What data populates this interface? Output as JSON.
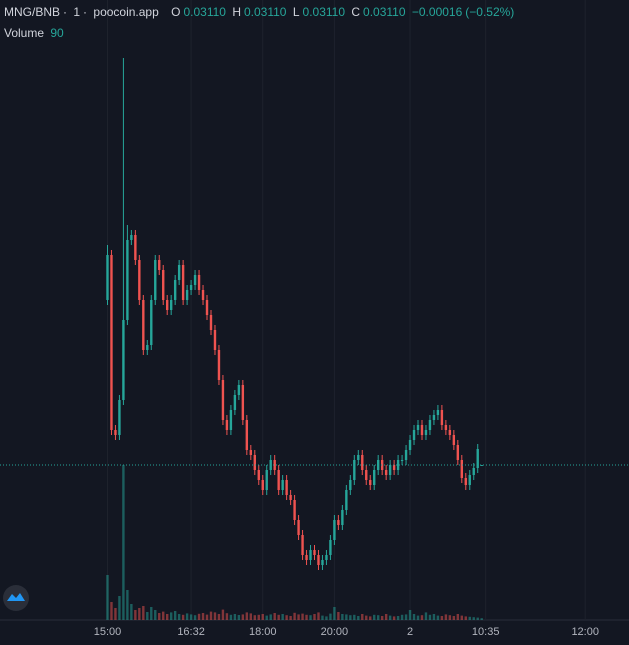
{
  "chart_data": {
    "type": "candlestick",
    "legend": {
      "pair": "MNG/BNB",
      "interval": "1",
      "source": "poocoin.app",
      "open_label": "O",
      "open": {
        "value": 0.0311,
        "label": "0.03110"
      },
      "high_label": "H",
      "high": {
        "value": 0.0311,
        "label": "0.03110"
      },
      "low_label": "L",
      "low": {
        "value": 0.0311,
        "label": "0.03110"
      },
      "close_label": "C",
      "close": {
        "value": 0.0311,
        "label": "0.03110"
      },
      "change": {
        "value": -0.00016,
        "label": "−0.00016"
      },
      "change_pct": {
        "value": -0.52,
        "label": "(−0.52%)"
      },
      "volume_label": "Volume",
      "volume": 90
    },
    "up_color": "#26a69a",
    "down_color": "#ef5350",
    "open": [
      0.03275,
      0.0332,
      0.03145,
      0.0314,
      0.03175,
      0.03255,
      0.03335,
      0.0334,
      0.03315,
      0.03275,
      0.03225,
      0.0323,
      0.03275,
      0.03315,
      0.03305,
      0.03275,
      0.03265,
      0.03275,
      0.03295,
      0.0331,
      0.03275,
      0.03285,
      0.0329,
      0.033,
      0.03285,
      0.03275,
      0.0326,
      0.03245,
      0.03225,
      0.03195,
      0.03155,
      0.03145,
      0.03165,
      0.0318,
      0.0319,
      0.03155,
      0.03125,
      0.0312,
      0.03105,
      0.03095,
      0.03085,
      0.03105,
      0.03115,
      0.03105,
      0.03085,
      0.03095,
      0.0308,
      0.03075,
      0.03055,
      0.0304,
      0.0302,
      0.03015,
      0.03025,
      0.0302,
      0.0301,
      0.03015,
      0.0302,
      0.03035,
      0.03055,
      0.0305,
      0.03065,
      0.03085,
      0.03095,
      0.03115,
      0.0312,
      0.03105,
      0.03095,
      0.0309,
      0.03105,
      0.03115,
      0.03105,
      0.031,
      0.0311,
      0.03105,
      0.03115,
      0.03115,
      0.03125,
      0.03135,
      0.03145,
      0.0315,
      0.0314,
      0.03145,
      0.03155,
      0.0316,
      0.03165,
      0.0315,
      0.03145,
      0.0314,
      0.0313,
      0.03115,
      0.03097,
      0.0309,
      0.031,
      0.03107,
      0.0311
    ],
    "high": [
      0.0333,
      0.03325,
      0.0315,
      0.0318,
      0.03517,
      0.0335,
      0.03345,
      0.03345,
      0.0332,
      0.0328,
      0.03235,
      0.0328,
      0.0332,
      0.0332,
      0.0331,
      0.0328,
      0.0328,
      0.033,
      0.03315,
      0.03315,
      0.0329,
      0.03295,
      0.03305,
      0.03305,
      0.0329,
      0.0328,
      0.03265,
      0.0325,
      0.0323,
      0.032,
      0.0316,
      0.0317,
      0.03185,
      0.03195,
      0.03195,
      0.0316,
      0.0313,
      0.03125,
      0.0311,
      0.031,
      0.0311,
      0.0312,
      0.0312,
      0.0311,
      0.031,
      0.031,
      0.03085,
      0.0308,
      0.0306,
      0.03045,
      0.03025,
      0.0303,
      0.0303,
      0.03025,
      0.0302,
      0.03025,
      0.0304,
      0.0306,
      0.0306,
      0.0307,
      0.0309,
      0.031,
      0.0312,
      0.03125,
      0.03125,
      0.0311,
      0.031,
      0.0311,
      0.0312,
      0.0312,
      0.0311,
      0.03115,
      0.03115,
      0.0312,
      0.0312,
      0.0313,
      0.0314,
      0.0315,
      0.03155,
      0.03155,
      0.0315,
      0.0316,
      0.03165,
      0.0317,
      0.0317,
      0.03155,
      0.0315,
      0.03145,
      0.03135,
      0.0312,
      0.03102,
      0.03105,
      0.03112,
      0.03131,
      0.0311
    ],
    "low": [
      0.0327,
      0.0314,
      0.03135,
      0.03135,
      0.0317,
      0.0325,
      0.0333,
      0.0331,
      0.0327,
      0.0322,
      0.0322,
      0.03225,
      0.0327,
      0.033,
      0.0327,
      0.0326,
      0.0326,
      0.0327,
      0.0329,
      0.0327,
      0.0327,
      0.0328,
      0.03285,
      0.0328,
      0.0327,
      0.03255,
      0.0324,
      0.0322,
      0.0319,
      0.0315,
      0.0314,
      0.0314,
      0.0316,
      0.03175,
      0.0315,
      0.0312,
      0.03115,
      0.031,
      0.0309,
      0.0308,
      0.0308,
      0.031,
      0.031,
      0.0308,
      0.0308,
      0.03075,
      0.0307,
      0.0305,
      0.03035,
      0.03015,
      0.0301,
      0.0301,
      0.03015,
      0.03005,
      0.03005,
      0.0301,
      0.03015,
      0.0303,
      0.03045,
      0.03045,
      0.0306,
      0.0308,
      0.0309,
      0.0311,
      0.031,
      0.0309,
      0.03085,
      0.03085,
      0.031,
      0.031,
      0.03095,
      0.03095,
      0.031,
      0.031,
      0.0311,
      0.0311,
      0.0312,
      0.0313,
      0.0314,
      0.03135,
      0.03135,
      0.0314,
      0.0315,
      0.03155,
      0.03145,
      0.0314,
      0.03135,
      0.03125,
      0.0311,
      0.03092,
      0.03085,
      0.03085,
      0.03095,
      0.03102,
      0.0311
    ],
    "close": [
      0.0332,
      0.03145,
      0.0314,
      0.03175,
      0.03255,
      0.03335,
      0.0334,
      0.03315,
      0.03275,
      0.03225,
      0.0323,
      0.03275,
      0.03315,
      0.03305,
      0.03275,
      0.03265,
      0.03275,
      0.03295,
      0.0331,
      0.03275,
      0.03285,
      0.0329,
      0.033,
      0.03285,
      0.03275,
      0.0326,
      0.03245,
      0.03225,
      0.03195,
      0.03155,
      0.03145,
      0.03165,
      0.0318,
      0.0319,
      0.03155,
      0.03125,
      0.0312,
      0.03105,
      0.03095,
      0.03085,
      0.03105,
      0.03115,
      0.03105,
      0.03085,
      0.03095,
      0.0308,
      0.03075,
      0.03055,
      0.0304,
      0.0302,
      0.03015,
      0.03025,
      0.0302,
      0.0301,
      0.03015,
      0.0302,
      0.03035,
      0.03055,
      0.0305,
      0.03065,
      0.03085,
      0.03095,
      0.03115,
      0.0312,
      0.03105,
      0.03095,
      0.0309,
      0.03105,
      0.03115,
      0.03105,
      0.031,
      0.0311,
      0.03105,
      0.03115,
      0.03115,
      0.03125,
      0.03135,
      0.03145,
      0.0315,
      0.0314,
      0.03145,
      0.03155,
      0.0316,
      0.03165,
      0.0315,
      0.03145,
      0.0314,
      0.0313,
      0.03115,
      0.03097,
      0.0309,
      0.031,
      0.03107,
      0.03126,
      0.0311
    ],
    "volumes": [
      2250,
      900,
      600,
      1200,
      7750,
      1500,
      800,
      500,
      600,
      700,
      400,
      650,
      500,
      350,
      420,
      300,
      380,
      450,
      300,
      260,
      330,
      280,
      240,
      310,
      350,
      270,
      420,
      380,
      300,
      520,
      340,
      260,
      300,
      250,
      280,
      380,
      330,
      240,
      260,
      300,
      220,
      280,
      350,
      260,
      300,
      240,
      200,
      360,
      280,
      320,
      260,
      240,
      300,
      380,
      220,
      180,
      320,
      650,
      400,
      300,
      280,
      240,
      260,
      200,
      300,
      220,
      180,
      260,
      240,
      200,
      300,
      220,
      180,
      200,
      260,
      280,
      500,
      300,
      220,
      240,
      380,
      260,
      300,
      220,
      200,
      280,
      240,
      200,
      300,
      220,
      180,
      160,
      140,
      120,
      90
    ],
    "xlim": [
      -27,
      131
    ],
    "xticks": [
      {
        "value": 0,
        "label": "15:00"
      },
      {
        "value": 21,
        "label": "16:32"
      },
      {
        "value": 39,
        "label": "18:00"
      },
      {
        "value": 57,
        "label": "20:00"
      },
      {
        "value": 76,
        "label": "2"
      },
      {
        "value": 95,
        "label": "10:35"
      },
      {
        "value": 120,
        "label": "12:00"
      }
    ],
    "ylim": [
      0.02955,
      0.03575
    ],
    "volume_ylim": [
      0,
      31000
    ],
    "grid": true
  }
}
